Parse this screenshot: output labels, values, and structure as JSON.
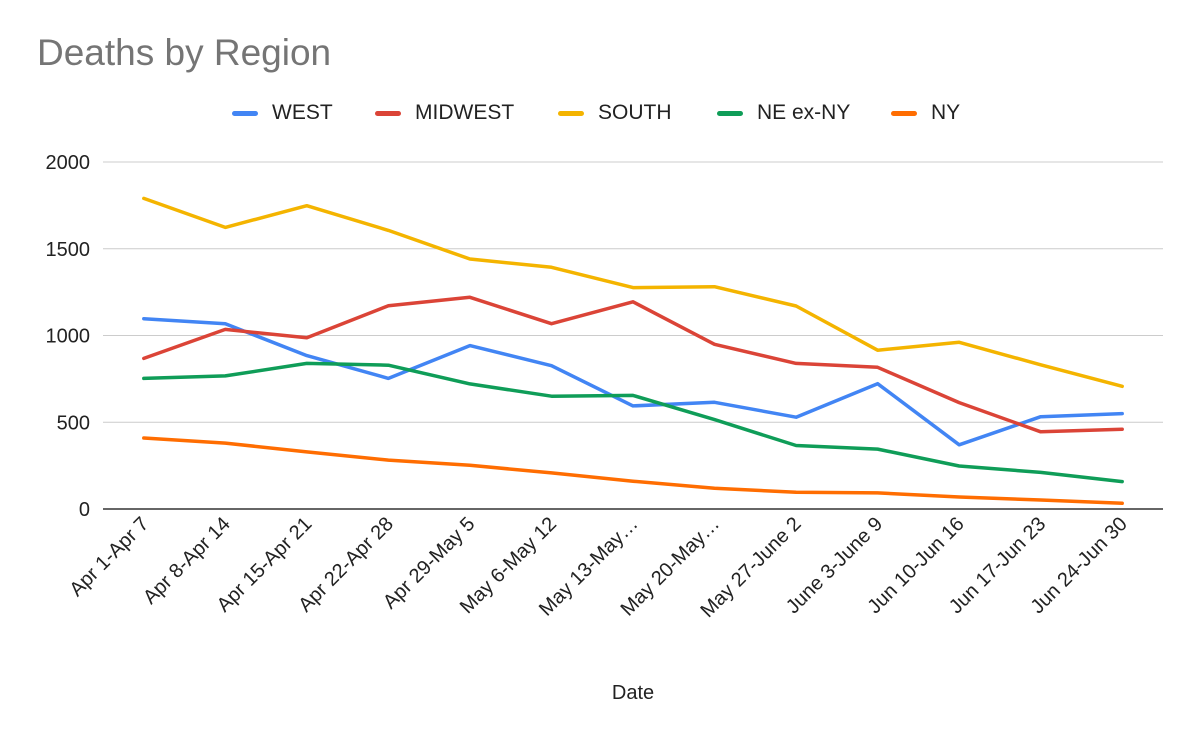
{
  "chart_data": {
    "type": "line",
    "title": "Deaths by Region",
    "xlabel": "Date",
    "ylabel": "",
    "ylim": [
      0,
      2000
    ],
    "yticks": [
      0,
      500,
      1000,
      1500,
      2000
    ],
    "grid": true,
    "legend_position": "top",
    "categories": [
      "Apr 1-Apr 7",
      "Apr 8-Apr 14",
      "Apr 15-Apr 21",
      "Apr 22-Apr 28",
      "Apr 29-May 5",
      "May 6-May 12",
      "May 13-May…",
      "May 20-May…",
      "May 27-June 2",
      "June 3-June 9",
      "Jun 10-Jun 16",
      "Jun 17-Jun 23",
      "Jun 24-Jun 30"
    ],
    "series": [
      {
        "name": "WEST",
        "color": "#4285F4",
        "values": [
          1097,
          1068,
          884,
          753,
          942,
          826,
          594,
          615,
          529,
          722,
          370,
          532,
          550
        ]
      },
      {
        "name": "MIDWEST",
        "color": "#DB4437",
        "values": [
          868,
          1035,
          987,
          1172,
          1220,
          1068,
          1194,
          949,
          839,
          817,
          613,
          445,
          460
        ]
      },
      {
        "name": "SOUTH",
        "color": "#F4B400",
        "values": [
          1790,
          1623,
          1748,
          1606,
          1441,
          1393,
          1276,
          1281,
          1170,
          915,
          961,
          831,
          707
        ]
      },
      {
        "name": "NE ex-NY",
        "color": "#0F9D58",
        "values": [
          753,
          767,
          839,
          829,
          721,
          650,
          655,
          515,
          366,
          345,
          248,
          211,
          158
        ]
      },
      {
        "name": "NY",
        "color": "#FF6D01",
        "values": [
          409,
          380,
          329,
          282,
          252,
          208,
          160,
          120,
          96,
          93,
          69,
          52,
          33
        ]
      }
    ]
  }
}
